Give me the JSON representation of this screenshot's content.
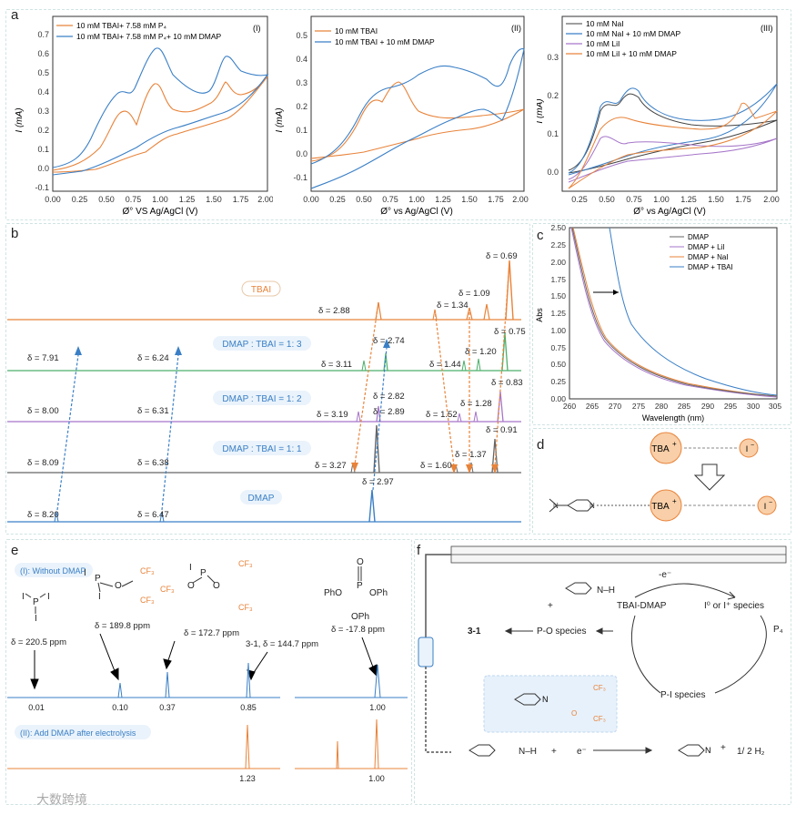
{
  "colors": {
    "orange": "#e8833a",
    "blue": "#3a7fc6",
    "green": "#4caf6a",
    "purple": "#a676c9",
    "gray": "#666666",
    "red": "#d64a3a",
    "light_blue_bg": "#e7f1fb"
  },
  "panel_a": {
    "label": "a",
    "sub1": {
      "tag": "(I)",
      "legend": [
        "10 mM TBAI+ 7.58 mM P₄",
        "10 mM TBAI+ 7.58 mM P₄+ 10 mM DMAP"
      ],
      "ylabel": "I (mA)",
      "xlabel": "Ø° VS Ag/AgCl (V)",
      "xticks": [
        "0.00",
        "0.25",
        "0.50",
        "0.75",
        "1.00",
        "1.25",
        "1.50",
        "1.75",
        "2.00"
      ],
      "yticks": [
        "-0.1",
        "0.0",
        "0.1",
        "0.2",
        "0.3",
        "0.4",
        "0.5",
        "0.6",
        "0.7"
      ]
    },
    "sub2": {
      "tag": "(II)",
      "legend": [
        "10 mM TBAI",
        "10 mM TBAI + 10 mM DMAP"
      ],
      "ylabel": "I (mA)",
      "xlabel": "Ø° vs Ag/AgCl (V)",
      "xticks": [
        "0.00",
        "0.25",
        "0.50",
        "0.75",
        "1.00",
        "1.25",
        "1.50",
        "1.75",
        "2.00"
      ],
      "yticks": [
        "-0.1",
        "0.0",
        "0.1",
        "0.2",
        "0.3",
        "0.4",
        "0.5"
      ]
    },
    "sub3": {
      "tag": "(III)",
      "legend": [
        "10 mM NaI",
        "10 mM NaI + 10 mM DMAP",
        "10 mM LiI",
        "10 mM LiI + 10 mM DMAP"
      ],
      "ylabel": "I (mA)",
      "xlabel": "Ø° vs Ag/AgCl (V)",
      "xticks": [
        "0.25",
        "0.50",
        "0.75",
        "1.00",
        "1.25",
        "1.50",
        "1.75",
        "2.00"
      ],
      "yticks": [
        "0.0",
        "0.1",
        "0.2",
        "0.3"
      ]
    }
  },
  "panel_b": {
    "label": "b",
    "traces": [
      "TBAI",
      "DMAP : TBAI = 1: 3",
      "DMAP : TBAI = 1: 2",
      "DMAP : TBAI = 1: 1",
      "DMAP"
    ],
    "shifts": {
      "t0": [
        "δ = 2.88",
        "δ = 1.34",
        "δ = 1.09",
        "δ = 0.69"
      ],
      "t1": [
        "δ = 7.91",
        "δ = 6.24",
        "δ = 2.74",
        "δ = 3.11",
        "δ = 1.44",
        "δ = 1.20",
        "δ = 0.75"
      ],
      "t2": [
        "δ = 8.00",
        "δ = 6.31",
        "δ = 2.82",
        "δ = 3.19",
        "δ = 1.52",
        "δ = 1.28",
        "δ = 0.83"
      ],
      "t3": [
        "δ = 8.09",
        "δ = 6.38",
        "δ = 2.89",
        "δ = 3.27",
        "δ = 1.60",
        "δ = 1.37",
        "δ = 0.91"
      ],
      "t4": [
        "δ = 8.20",
        "δ = 6.47",
        "δ = 2.97"
      ]
    }
  },
  "panel_c": {
    "label": "c",
    "ylabel": "Abs",
    "xlabel": "Wavelength (nm)",
    "legend": [
      "DMAP",
      "DMAP + LiI",
      "DMAP + NaI",
      "DMAP + TBAI"
    ],
    "xticks": [
      "260",
      "265",
      "270",
      "275",
      "280",
      "285",
      "290",
      "295",
      "300",
      "305"
    ],
    "yticks": [
      "0.00",
      "0.25",
      "0.50",
      "0.75",
      "1.00",
      "1.25",
      "1.50",
      "1.75",
      "2.00",
      "2.25",
      "2.50"
    ]
  },
  "panel_d": {
    "label": "d",
    "tba": "TBA",
    "plus": "+",
    "iodide": "I",
    "minus": "−"
  },
  "panel_e": {
    "label": "e",
    "tag1": "(I): Without DMAP",
    "tag2": "(II): Add DMAP after electrolysis",
    "shifts": [
      "δ = 220.5 ppm",
      "δ = 189.8 ppm",
      "δ = 172.7 ppm",
      "3-1, δ = 144.7 ppm",
      "δ = -17.8 ppm"
    ],
    "integrals1": [
      "0.01",
      "0.10",
      "0.37",
      "0.85",
      "1.00"
    ],
    "integrals2": [
      "1.23",
      "1.00"
    ],
    "mol_I": "I",
    "mol_P": "P",
    "mol_O": "O",
    "mol_CF3": "CF₃",
    "mol_PhO": "PhO",
    "mol_OPh": "OPh"
  },
  "panel_f": {
    "label": "f",
    "e_minus": "-e⁻",
    "tbai_dmap": "TBAI-DMAP",
    "iodine": "I⁰ or I⁺ species",
    "p4": "P₄",
    "pi": "P-I species",
    "po": "P-O species",
    "product": "3-1",
    "plus": "+",
    "e_bottom": "e⁻",
    "h2": "1/ 2 H₂",
    "nh": "N–H",
    "n": "N"
  },
  "watermark": "大数跨境"
}
